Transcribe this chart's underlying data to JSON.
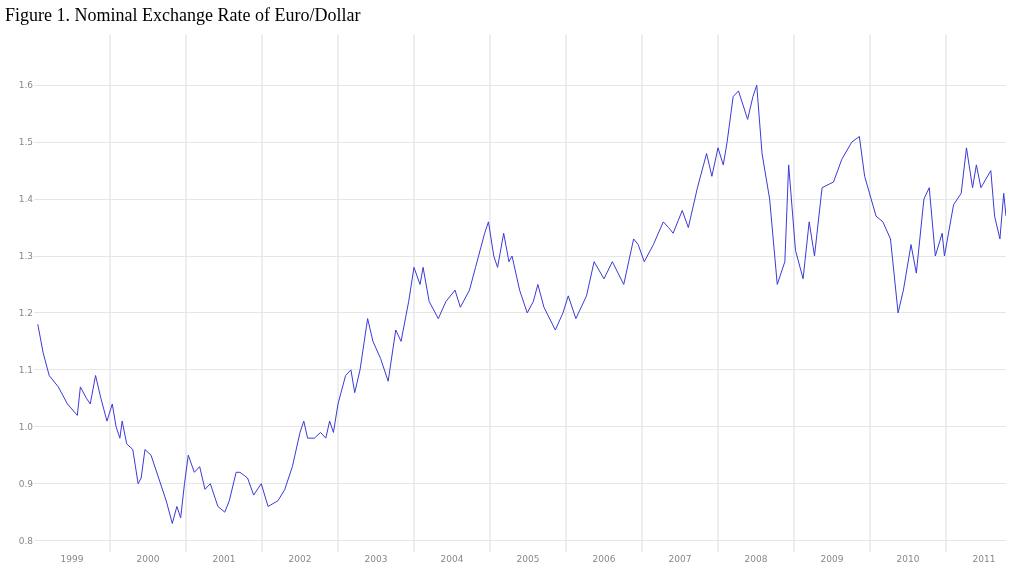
{
  "chart_data": {
    "type": "line",
    "title": "Figure 1. Nominal Exchange Rate of Euro/Dollar",
    "x": [
      1999.05,
      1999.12,
      1999.2,
      1999.32,
      1999.44,
      1999.57,
      1999.61,
      1999.69,
      1999.74,
      1999.81,
      1999.88,
      1999.96,
      2000.03,
      2000.08,
      2000.13,
      2000.16,
      2000.22,
      2000.3,
      2000.37,
      2000.41,
      2000.46,
      2000.54,
      2000.64,
      2000.74,
      2000.82,
      2000.88,
      2000.93,
      2000.98,
      2001.03,
      2001.11,
      2001.18,
      2001.25,
      2001.32,
      2001.42,
      2001.51,
      2001.57,
      2001.66,
      2001.71,
      2001.81,
      2001.89,
      2001.99,
      2002.08,
      2002.21,
      2002.3,
      2002.4,
      2002.5,
      2002.55,
      2002.6,
      2002.69,
      2002.77,
      2002.84,
      2002.89,
      2002.94,
      2003.0,
      2003.1,
      2003.17,
      2003.22,
      2003.29,
      2003.39,
      2003.46,
      2003.56,
      2003.66,
      2003.76,
      2003.83,
      2003.93,
      2004.0,
      2004.08,
      2004.12,
      2004.2,
      2004.32,
      2004.42,
      2004.54,
      2004.61,
      2004.73,
      2004.81,
      2004.93,
      2004.98,
      2005.05,
      2005.1,
      2005.18,
      2005.25,
      2005.29,
      2005.39,
      2005.49,
      2005.57,
      2005.63,
      2005.71,
      2005.86,
      2005.96,
      2006.03,
      2006.13,
      2006.27,
      2006.37,
      2006.5,
      2006.61,
      2006.76,
      2006.89,
      2006.95,
      2007.03,
      2007.15,
      2007.28,
      2007.35,
      2007.41,
      2007.53,
      2007.61,
      2007.73,
      2007.85,
      2007.92,
      2008.0,
      2008.07,
      2008.12,
      2008.2,
      2008.27,
      2008.39,
      2008.46,
      2008.51,
      2008.58,
      2008.68,
      2008.78,
      2008.88,
      2008.93,
      2009.02,
      2009.12,
      2009.2,
      2009.27,
      2009.37,
      2009.52,
      2009.63,
      2009.76,
      2009.86,
      2009.93,
      2010.08,
      2010.17,
      2010.27,
      2010.37,
      2010.44,
      2010.54,
      2010.61,
      2010.71,
      2010.78,
      2010.86,
      2010.95,
      2010.98,
      2011.1,
      2011.2,
      2011.27,
      2011.35,
      2011.4,
      2011.46,
      2011.59,
      2011.64,
      2011.71,
      2011.76,
      2011.79
    ],
    "series": [
      {
        "color": "#3b3bd6",
        "values": [
          1.18,
          1.13,
          1.09,
          1.07,
          1.04,
          1.02,
          1.07,
          1.05,
          1.04,
          1.09,
          1.05,
          1.01,
          1.04,
          1.0,
          0.98,
          1.01,
          0.97,
          0.96,
          0.9,
          0.91,
          0.96,
          0.95,
          0.91,
          0.87,
          0.83,
          0.86,
          0.84,
          0.9,
          0.95,
          0.92,
          0.93,
          0.89,
          0.9,
          0.86,
          0.85,
          0.87,
          0.92,
          0.92,
          0.91,
          0.88,
          0.9,
          0.86,
          0.87,
          0.89,
          0.93,
          0.99,
          1.01,
          0.98,
          0.98,
          0.99,
          0.98,
          1.01,
          0.99,
          1.04,
          1.09,
          1.1,
          1.06,
          1.1,
          1.19,
          1.15,
          1.12,
          1.08,
          1.17,
          1.15,
          1.22,
          1.28,
          1.25,
          1.28,
          1.22,
          1.19,
          1.22,
          1.24,
          1.21,
          1.24,
          1.28,
          1.34,
          1.36,
          1.3,
          1.28,
          1.34,
          1.29,
          1.3,
          1.24,
          1.2,
          1.22,
          1.25,
          1.21,
          1.17,
          1.2,
          1.23,
          1.19,
          1.23,
          1.29,
          1.26,
          1.29,
          1.25,
          1.33,
          1.32,
          1.29,
          1.32,
          1.36,
          1.35,
          1.34,
          1.38,
          1.35,
          1.42,
          1.48,
          1.44,
          1.49,
          1.46,
          1.5,
          1.58,
          1.59,
          1.54,
          1.58,
          1.6,
          1.48,
          1.4,
          1.25,
          1.29,
          1.46,
          1.31,
          1.26,
          1.36,
          1.3,
          1.42,
          1.43,
          1.47,
          1.5,
          1.51,
          1.44,
          1.37,
          1.36,
          1.33,
          1.2,
          1.24,
          1.32,
          1.27,
          1.4,
          1.42,
          1.3,
          1.34,
          1.3,
          1.39,
          1.41,
          1.49,
          1.42,
          1.46,
          1.42,
          1.45,
          1.37,
          1.33,
          1.41,
          1.37
        ]
      }
    ],
    "xlim": [
      1999.0,
      2011.79
    ],
    "xticks": [
      {
        "value": 1999.5,
        "label": "1999"
      },
      {
        "value": 2000.5,
        "label": "2000"
      },
      {
        "value": 2001.5,
        "label": "2001"
      },
      {
        "value": 2002.5,
        "label": "2002"
      },
      {
        "value": 2003.5,
        "label": "2003"
      },
      {
        "value": 2004.5,
        "label": "2004"
      },
      {
        "value": 2005.5,
        "label": "2005"
      },
      {
        "value": 2006.5,
        "label": "2006"
      },
      {
        "value": 2007.5,
        "label": "2007"
      },
      {
        "value": 2008.5,
        "label": "2008"
      },
      {
        "value": 2009.5,
        "label": "2009"
      },
      {
        "value": 2010.5,
        "label": "2010"
      },
      {
        "value": 2011.5,
        "label": "2011"
      },
      {
        "value": 2000,
        "label": null
      },
      {
        "value": 2001,
        "label": null
      },
      {
        "value": 2002,
        "label": null
      },
      {
        "value": 2003,
        "label": null
      },
      {
        "value": 2004,
        "label": null
      },
      {
        "value": 2005,
        "label": null
      },
      {
        "value": 2006,
        "label": null
      },
      {
        "value": 2007,
        "label": null
      },
      {
        "value": 2008,
        "label": null
      },
      {
        "value": 2009,
        "label": null
      },
      {
        "value": 2010,
        "label": null
      },
      {
        "value": 2011,
        "label": null
      }
    ],
    "ylim": [
      0.78,
      1.69
    ],
    "yticks": [
      {
        "value": 0.8,
        "label": "0.8"
      },
      {
        "value": 0.9,
        "label": "0.9"
      },
      {
        "value": 1.0,
        "label": "1.0"
      },
      {
        "value": 1.1,
        "label": "1.1"
      },
      {
        "value": 1.2,
        "label": "1.2"
      },
      {
        "value": 1.3,
        "label": "1.3"
      },
      {
        "value": 1.4,
        "label": "1.4"
      },
      {
        "value": 1.5,
        "label": "1.5"
      },
      {
        "value": 1.6,
        "label": "1.6"
      }
    ],
    "grid": true,
    "marker": "none",
    "line_style": "solid"
  }
}
